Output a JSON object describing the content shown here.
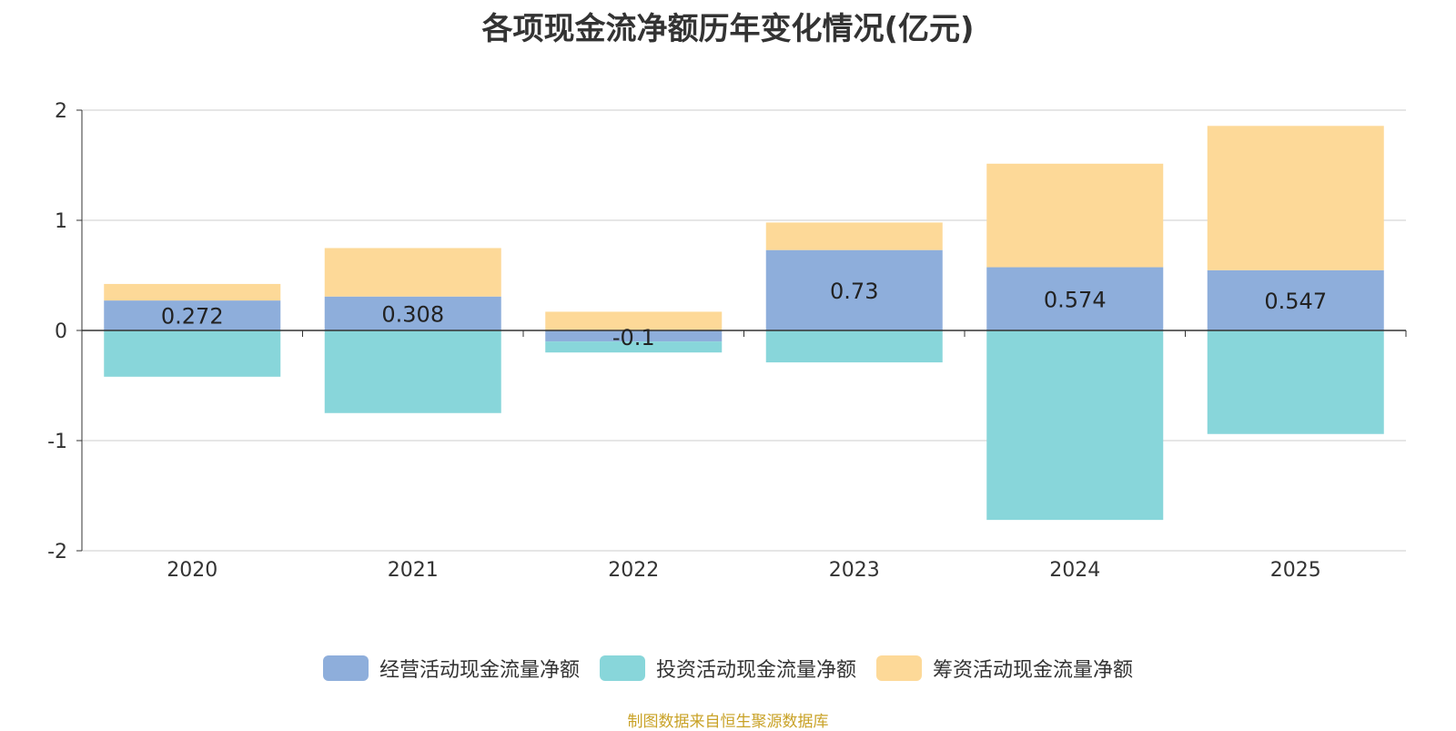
{
  "chart_data": {
    "type": "bar",
    "stacked": true,
    "title": "各项现金流净额历年变化情况(亿元)",
    "categories": [
      "2020",
      "2021",
      "2022",
      "2023",
      "2024",
      "2025"
    ],
    "series": [
      {
        "name": "经营活动现金流量净额",
        "color": "#8eaedb",
        "values": [
          0.272,
          0.308,
          -0.1,
          0.73,
          0.574,
          0.547
        ],
        "labels": [
          "0.272",
          "0.308",
          "-0.1",
          "0.73",
          "0.574",
          "0.547"
        ]
      },
      {
        "name": "投资活动现金流量净额",
        "color": "#88d6da",
        "values": [
          -0.42,
          -0.75,
          -0.1,
          -0.29,
          -1.72,
          -0.94
        ]
      },
      {
        "name": "筹资活动现金流量净额",
        "color": "#fdd998",
        "values": [
          0.15,
          0.44,
          0.17,
          0.25,
          0.94,
          1.31
        ]
      }
    ],
    "ylim": [
      -2,
      2
    ],
    "yticks": [
      "2",
      "1",
      "0",
      "-1",
      "-2"
    ],
    "grid": true,
    "legend_position": "bottom"
  },
  "source": "制图数据来自恒生聚源数据库"
}
